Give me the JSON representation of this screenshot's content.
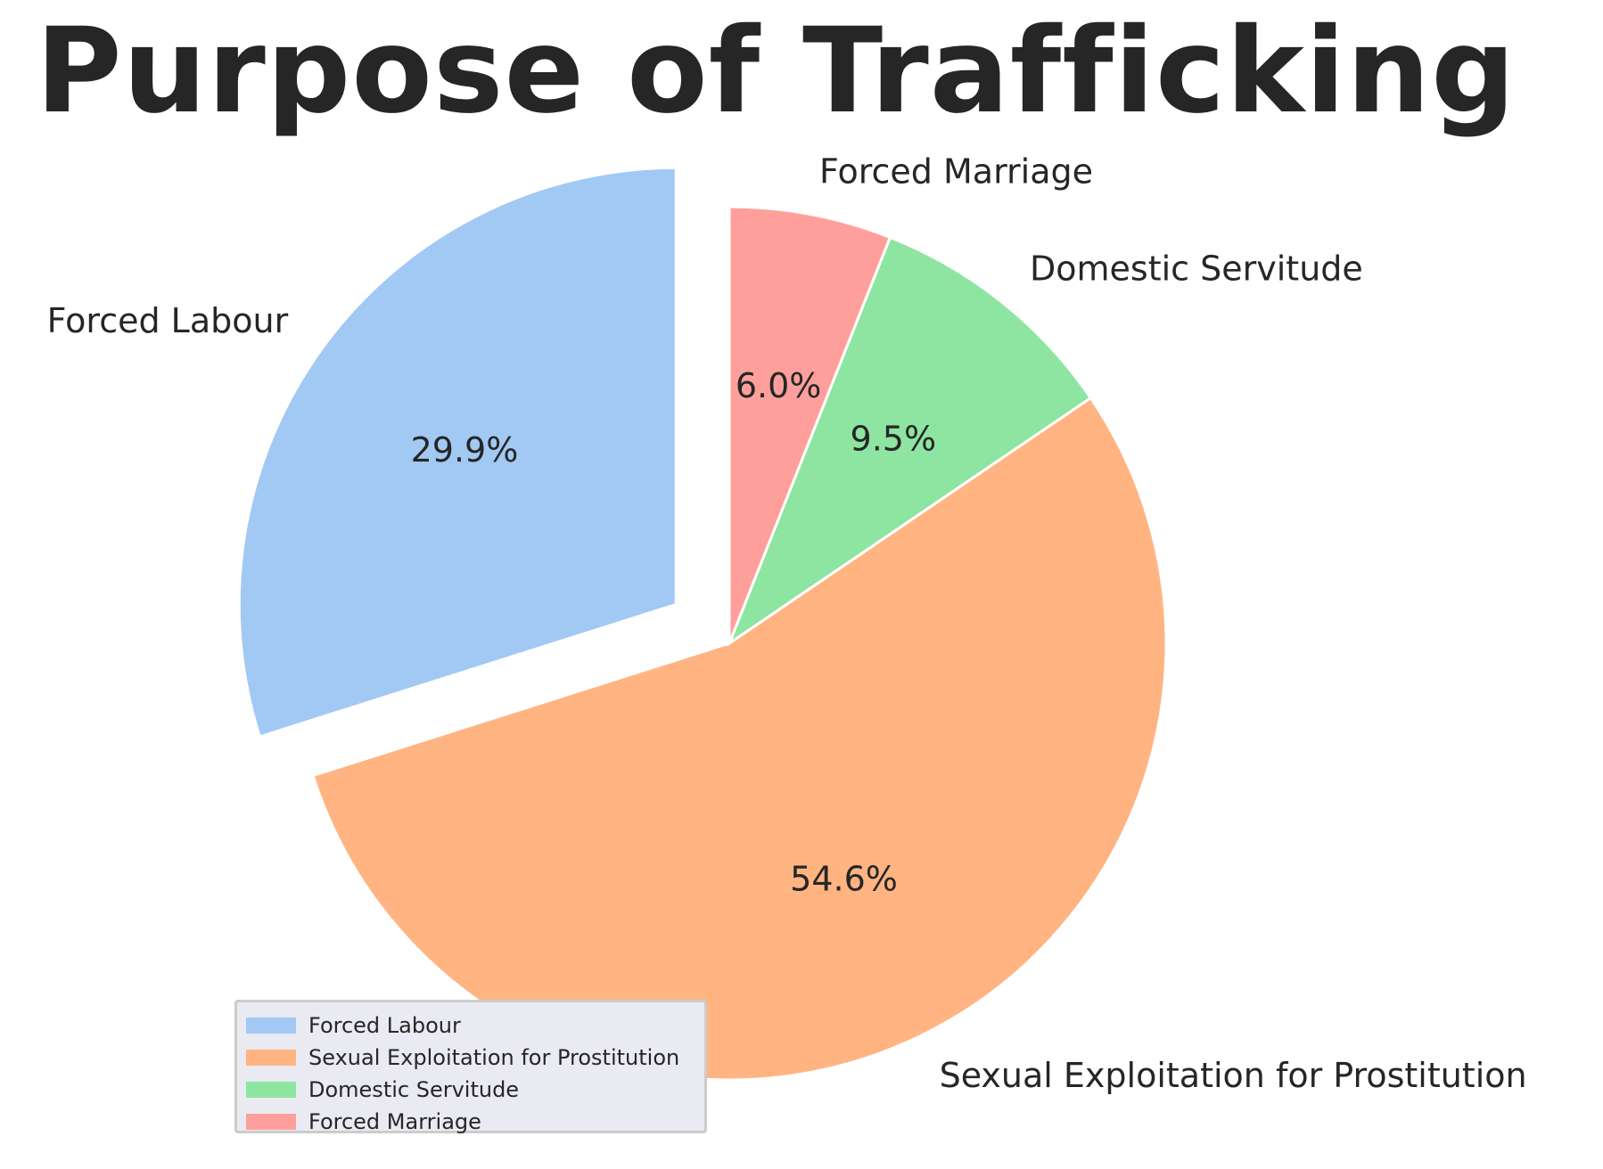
{
  "chart_data": {
    "type": "pie",
    "title": "Purpose of Trafficking",
    "categories": [
      "Forced Labour",
      "Sexual Exploitation for Prostitution",
      "Domestic Servitude",
      "Forced Marriage"
    ],
    "values": [
      29.9,
      54.6,
      9.5,
      6.0
    ],
    "value_labels": [
      "29.9%",
      "54.6%",
      "9.5%",
      "6.0%"
    ],
    "colors": [
      "#a1c9f4",
      "#ffb482",
      "#8de5a1",
      "#ff9f9b"
    ],
    "exploded": [
      "Forced Labour"
    ],
    "start": "top",
    "direction": "counterclockwise",
    "legend": {
      "position": "lower-left",
      "items": [
        "Forced Labour",
        "Sexual Exploitation for Prostitution",
        "Domestic Servitude",
        "Forced Marriage"
      ]
    }
  }
}
